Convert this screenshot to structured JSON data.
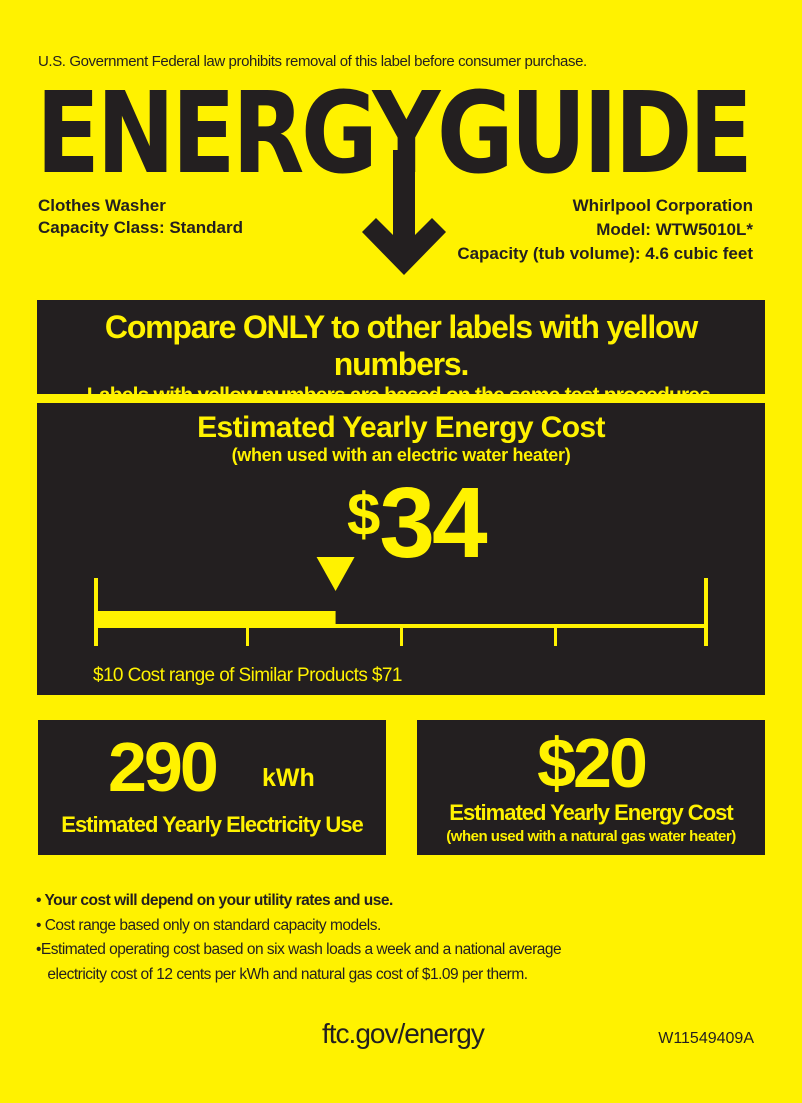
{
  "header": {
    "notice": "U.S. Government  Federal law prohibits removal of this label before consumer purchase.",
    "logo": "ENERGYGUIDE"
  },
  "product": {
    "type": "Clothes Washer",
    "capacity_class": "Capacity Class: Standard",
    "manufacturer": "Whirlpool Corporation",
    "model": "Model: WTW5010L*",
    "capacity": "Capacity (tub volume): 4.6 cubic feet"
  },
  "compare": {
    "line1": "Compare ONLY to other labels with yellow numbers.",
    "line2": "Labels with yellow numbers are based on the same test procedures."
  },
  "electric_cost": {
    "title": "Estimated Yearly Energy Cost",
    "subtitle": "(when used with an electric water heater)",
    "currency": "$",
    "value": "34",
    "range_min": 10,
    "range_max": 71,
    "marker_value": 34,
    "range_label": "$10  Cost range of Similar Products  $71"
  },
  "electricity_use": {
    "value": "290",
    "unit": "kWh",
    "label": "Estimated Yearly Electricity Use"
  },
  "gas_cost": {
    "value": "$20",
    "label": "Estimated Yearly Energy Cost",
    "sublabel": "(when used with a natural gas water heater)"
  },
  "notes": [
    "• Your cost will depend on your utility rates and use.",
    "• Cost range based only on standard capacity models.",
    "•Estimated operating cost based on six wash loads a week and a national average",
    "   electricity cost of 12 cents per kWh and natural gas cost of $1.09 per therm."
  ],
  "footer": {
    "link": "ftc.gov/energy",
    "code": "W11549409A"
  },
  "colors": {
    "yellow": "#fff200",
    "dark": "#231f20"
  }
}
